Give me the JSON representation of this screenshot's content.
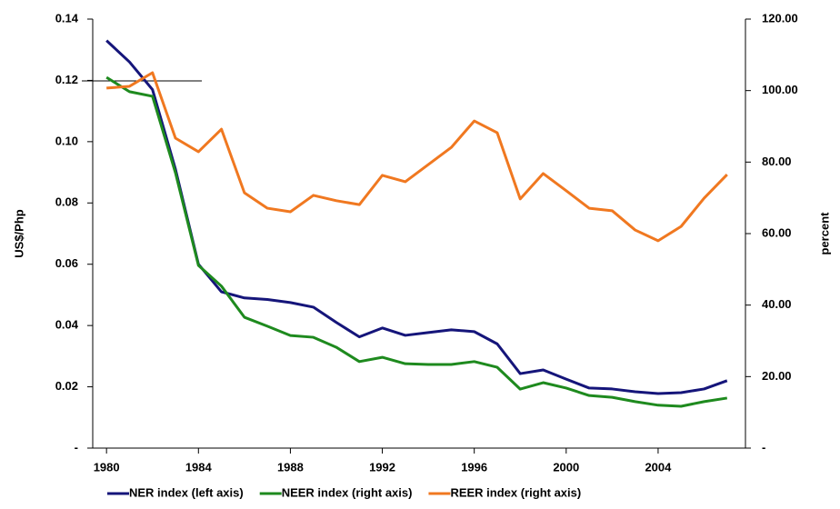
{
  "chart_data": {
    "type": "line",
    "y_label": "US$/Php",
    "y2_label": "percent",
    "x": [
      1980,
      1981,
      1982,
      1983,
      1984,
      1985,
      1986,
      1987,
      1988,
      1989,
      1990,
      1991,
      1992,
      1993,
      1994,
      1995,
      1996,
      1997,
      1998,
      1999,
      2000,
      2001,
      2002,
      2003,
      2004,
      2005,
      2006,
      2007
    ],
    "xlim": [
      1979.4,
      2007.8
    ],
    "xticks": [
      1980,
      1984,
      1988,
      1992,
      1996,
      2000,
      2004
    ],
    "ylim": [
      0,
      0.14
    ],
    "yticks": [
      {
        "value": 0,
        "label": "-"
      },
      0.02,
      0.04,
      0.06,
      0.08,
      {
        "value": 0.1,
        "label": "0.10"
      },
      0.12,
      0.14
    ],
    "y2lim": [
      0,
      120
    ],
    "y2ticks": [
      {
        "value": 0,
        "label": "-"
      },
      {
        "value": 20,
        "label": "20.00"
      },
      {
        "value": 40,
        "label": "40.00"
      },
      {
        "value": 60,
        "label": "60.00"
      },
      {
        "value": 80,
        "label": "80.00"
      },
      {
        "value": 100,
        "label": "100.00"
      },
      {
        "value": 120,
        "label": "120.00"
      }
    ],
    "legend": "bottom",
    "series": [
      {
        "name": "NER index (left axis)",
        "color": "#15157a",
        "values": [
          0.133,
          0.126,
          0.117,
          0.091,
          0.06,
          0.051,
          0.049,
          0.0485,
          0.0475,
          0.046,
          0.041,
          0.0363,
          0.0392,
          0.0368,
          0.0377,
          0.0386,
          0.038,
          0.034,
          0.0243,
          0.0255,
          0.0225,
          0.0196,
          0.0193,
          0.0184,
          0.0178,
          0.0181,
          0.0193,
          0.022
        ]
      },
      {
        "name": "NEER index (right axis)",
        "color": "#1e8a1e",
        "axis": "y2",
        "values": [
          103.7,
          99.7,
          98.4,
          77,
          51.1,
          45.3,
          36.6,
          34.1,
          31.5,
          31,
          28.2,
          24.2,
          25.4,
          23.6,
          23.4,
          23.4,
          24.2,
          22.6,
          16.5,
          18.3,
          16.8,
          14.7,
          14.2,
          13,
          12,
          11.7,
          13,
          14
        ]
      },
      {
        "name": "REER index (right axis)",
        "color": "#f07820",
        "axis": "y2",
        "values": [
          100.7,
          101.2,
          105,
          86.7,
          82.9,
          89.2,
          71.4,
          67.1,
          66.1,
          70.7,
          69.2,
          68.1,
          76.3,
          74.5,
          79.3,
          84.1,
          91.5,
          88.2,
          69.7,
          76.8,
          72,
          67.1,
          66.4,
          61,
          58,
          62,
          69.9,
          76.5
        ]
      }
    ]
  }
}
